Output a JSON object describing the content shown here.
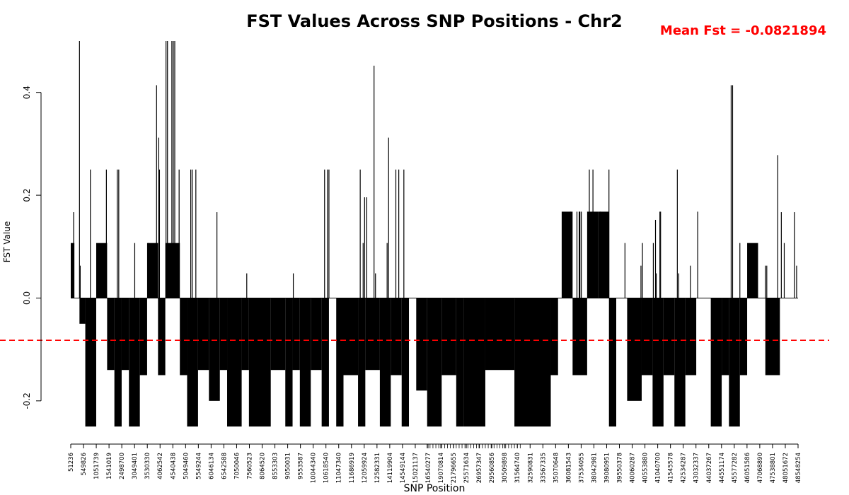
{
  "chart_data": {
    "type": "bar",
    "title": "FST Values Across SNP Positions - Chr2",
    "annotation": "Mean Fst = -0.0821894",
    "xlabel": "SNP Position",
    "ylabel": "FST Value",
    "ylim": [
      -0.28,
      0.5
    ],
    "yticks": [
      -0.2,
      0.0,
      0.2,
      0.4
    ],
    "ytick_labels": [
      "-0.2",
      "0.0",
      "0.2",
      "0.4"
    ],
    "mean_line": -0.0821894,
    "mean_line_color": "#ff0000",
    "bar_color": "#000000",
    "x_tick_labels": [
      "51236",
      "549826",
      "1051739",
      "1541019",
      "2498700",
      "3049401",
      "3530330",
      "4062542",
      "4540438",
      "5049460",
      "5549244",
      "6046134",
      "6542588",
      "7050046",
      "7560523",
      "8064520",
      "8553303",
      "9050031",
      "9553587",
      "10044340",
      "10618540",
      "11047340",
      "11686919",
      "12059924",
      "12582331",
      "14119904",
      "14549144",
      "15021137",
      "16540277",
      "19070814",
      "21796655",
      "25571634",
      "26957347",
      "29560856",
      "30509898",
      "31564740",
      "32590831",
      "33567335",
      "35070648",
      "36081543",
      "37534055",
      "38042981",
      "39080951",
      "39550378",
      "40060287",
      "40553880",
      "41040700",
      "41545578",
      "42534287",
      "43032337",
      "44037267",
      "44551174",
      "45577282",
      "46051586",
      "47068890",
      "47538801",
      "48051672",
      "48548254"
    ],
    "segments": [
      {
        "from": 0.0,
        "to": 0.005,
        "level": 0.107
      },
      {
        "from": 0.005,
        "to": 0.012,
        "level": 0.0
      },
      {
        "from": 0.012,
        "to": 0.02,
        "level": -0.05
      },
      {
        "from": 0.02,
        "to": 0.035,
        "level": -0.25
      },
      {
        "from": 0.035,
        "to": 0.05,
        "level": 0.107
      },
      {
        "from": 0.05,
        "to": 0.06,
        "level": -0.14
      },
      {
        "from": 0.06,
        "to": 0.07,
        "level": -0.25
      },
      {
        "from": 0.07,
        "to": 0.08,
        "level": -0.14
      },
      {
        "from": 0.08,
        "to": 0.095,
        "level": -0.25
      },
      {
        "from": 0.095,
        "to": 0.105,
        "level": -0.15
      },
      {
        "from": 0.105,
        "to": 0.12,
        "level": 0.107
      },
      {
        "from": 0.12,
        "to": 0.13,
        "level": -0.15
      },
      {
        "from": 0.13,
        "to": 0.15,
        "level": 0.107
      },
      {
        "from": 0.15,
        "to": 0.16,
        "level": -0.15
      },
      {
        "from": 0.16,
        "to": 0.175,
        "level": -0.25
      },
      {
        "from": 0.175,
        "to": 0.19,
        "level": -0.14
      },
      {
        "from": 0.19,
        "to": 0.205,
        "level": -0.2
      },
      {
        "from": 0.205,
        "to": 0.215,
        "level": -0.14
      },
      {
        "from": 0.215,
        "to": 0.235,
        "level": -0.25
      },
      {
        "from": 0.235,
        "to": 0.245,
        "level": -0.14
      },
      {
        "from": 0.245,
        "to": 0.275,
        "level": -0.25
      },
      {
        "from": 0.275,
        "to": 0.295,
        "level": -0.14
      },
      {
        "from": 0.295,
        "to": 0.305,
        "level": -0.25
      },
      {
        "from": 0.305,
        "to": 0.315,
        "level": -0.14
      },
      {
        "from": 0.315,
        "to": 0.33,
        "level": -0.25
      },
      {
        "from": 0.33,
        "to": 0.345,
        "level": -0.14
      },
      {
        "from": 0.345,
        "to": 0.355,
        "level": -0.25
      },
      {
        "from": 0.355,
        "to": 0.365,
        "level": 0.0
      },
      {
        "from": 0.365,
        "to": 0.375,
        "level": -0.25
      },
      {
        "from": 0.375,
        "to": 0.395,
        "level": -0.15
      },
      {
        "from": 0.395,
        "to": 0.405,
        "level": -0.25
      },
      {
        "from": 0.405,
        "to": 0.425,
        "level": -0.14
      },
      {
        "from": 0.425,
        "to": 0.44,
        "level": -0.25
      },
      {
        "from": 0.44,
        "to": 0.455,
        "level": -0.15
      },
      {
        "from": 0.455,
        "to": 0.465,
        "level": -0.25
      },
      {
        "from": 0.465,
        "to": 0.475,
        "level": 0.0
      },
      {
        "from": 0.475,
        "to": 0.49,
        "level": -0.18
      },
      {
        "from": 0.49,
        "to": 0.51,
        "level": -0.25
      },
      {
        "from": 0.51,
        "to": 0.53,
        "level": -0.15
      },
      {
        "from": 0.53,
        "to": 0.54,
        "level": -0.25
      },
      {
        "from": 0.54,
        "to": 0.57,
        "level": -0.25
      },
      {
        "from": 0.57,
        "to": 0.61,
        "level": -0.14
      },
      {
        "from": 0.61,
        "to": 0.66,
        "level": -0.25
      },
      {
        "from": 0.66,
        "to": 0.67,
        "level": -0.15
      },
      {
        "from": 0.67,
        "to": 0.675,
        "level": 0.0
      },
      {
        "from": 0.675,
        "to": 0.69,
        "level": 0.168
      },
      {
        "from": 0.69,
        "to": 0.71,
        "level": -0.15
      },
      {
        "from": 0.71,
        "to": 0.725,
        "level": 0.168
      },
      {
        "from": 0.725,
        "to": 0.74,
        "level": 0.168
      },
      {
        "from": 0.74,
        "to": 0.75,
        "level": -0.25
      },
      {
        "from": 0.75,
        "to": 0.765,
        "level": 0.0
      },
      {
        "from": 0.765,
        "to": 0.785,
        "level": -0.2
      },
      {
        "from": 0.785,
        "to": 0.8,
        "level": -0.15
      },
      {
        "from": 0.8,
        "to": 0.815,
        "level": -0.25
      },
      {
        "from": 0.815,
        "to": 0.83,
        "level": -0.15
      },
      {
        "from": 0.83,
        "to": 0.845,
        "level": -0.25
      },
      {
        "from": 0.845,
        "to": 0.86,
        "level": -0.15
      },
      {
        "from": 0.86,
        "to": 0.865,
        "level": 0.0
      },
      {
        "from": 0.865,
        "to": 0.88,
        "level": 0.0
      },
      {
        "from": 0.88,
        "to": 0.895,
        "level": -0.25
      },
      {
        "from": 0.895,
        "to": 0.905,
        "level": -0.15
      },
      {
        "from": 0.905,
        "to": 0.92,
        "level": -0.25
      },
      {
        "from": 0.92,
        "to": 0.93,
        "level": -0.15
      },
      {
        "from": 0.93,
        "to": 0.945,
        "level": 0.107
      },
      {
        "from": 0.945,
        "to": 0.955,
        "level": 0.0
      },
      {
        "from": 0.955,
        "to": 0.975,
        "level": -0.15
      },
      {
        "from": 0.975,
        "to": 1.0,
        "level": 0.0
      }
    ],
    "peaks": [
      {
        "x": 0.004,
        "value": 0.167
      },
      {
        "x": 0.012,
        "value": 0.5
      },
      {
        "x": 0.013,
        "value": 0.063
      },
      {
        "x": 0.027,
        "value": 0.25
      },
      {
        "x": 0.049,
        "value": 0.25
      },
      {
        "x": 0.064,
        "value": 0.25
      },
      {
        "x": 0.066,
        "value": 0.25
      },
      {
        "x": 0.088,
        "value": 0.107
      },
      {
        "x": 0.107,
        "value": 0.107
      },
      {
        "x": 0.117,
        "value": 0.107
      },
      {
        "x": 0.118,
        "value": 0.414
      },
      {
        "x": 0.121,
        "value": 0.312
      },
      {
        "x": 0.122,
        "value": 0.25
      },
      {
        "x": 0.131,
        "value": 0.5
      },
      {
        "x": 0.133,
        "value": 0.5
      },
      {
        "x": 0.139,
        "value": 0.5
      },
      {
        "x": 0.141,
        "value": 0.5
      },
      {
        "x": 0.143,
        "value": 0.5
      },
      {
        "x": 0.146,
        "value": 0.063
      },
      {
        "x": 0.149,
        "value": 0.25
      },
      {
        "x": 0.165,
        "value": 0.25
      },
      {
        "x": 0.167,
        "value": 0.25
      },
      {
        "x": 0.172,
        "value": 0.25
      },
      {
        "x": 0.201,
        "value": 0.167
      },
      {
        "x": 0.242,
        "value": 0.048
      },
      {
        "x": 0.306,
        "value": 0.048
      },
      {
        "x": 0.349,
        "value": 0.25
      },
      {
        "x": 0.353,
        "value": 0.25
      },
      {
        "x": 0.355,
        "value": 0.25
      },
      {
        "x": 0.398,
        "value": 0.25
      },
      {
        "x": 0.402,
        "value": 0.107
      },
      {
        "x": 0.404,
        "value": 0.196
      },
      {
        "x": 0.407,
        "value": 0.196
      },
      {
        "x": 0.417,
        "value": 0.452
      },
      {
        "x": 0.419,
        "value": 0.048
      },
      {
        "x": 0.435,
        "value": 0.107
      },
      {
        "x": 0.437,
        "value": 0.312
      },
      {
        "x": 0.447,
        "value": 0.25
      },
      {
        "x": 0.451,
        "value": 0.25
      },
      {
        "x": 0.458,
        "value": 0.25
      },
      {
        "x": 0.687,
        "value": 0.168
      },
      {
        "x": 0.696,
        "value": 0.168
      },
      {
        "x": 0.699,
        "value": 0.168
      },
      {
        "x": 0.7,
        "value": 0.168
      },
      {
        "x": 0.7,
        "value": 0.168
      },
      {
        "x": 0.702,
        "value": 0.168
      },
      {
        "x": 0.713,
        "value": 0.25
      },
      {
        "x": 0.718,
        "value": 0.25
      },
      {
        "x": 0.724,
        "value": 0.107
      },
      {
        "x": 0.728,
        "value": 0.168
      },
      {
        "x": 0.74,
        "value": 0.25
      },
      {
        "x": 0.762,
        "value": 0.107
      },
      {
        "x": 0.784,
        "value": 0.063
      },
      {
        "x": 0.786,
        "value": 0.107
      },
      {
        "x": 0.801,
        "value": 0.107
      },
      {
        "x": 0.804,
        "value": 0.152
      },
      {
        "x": 0.805,
        "value": 0.048
      },
      {
        "x": 0.81,
        "value": 0.168
      },
      {
        "x": 0.811,
        "value": 0.168
      },
      {
        "x": 0.834,
        "value": 0.25
      },
      {
        "x": 0.836,
        "value": 0.048
      },
      {
        "x": 0.852,
        "value": 0.063
      },
      {
        "x": 0.862,
        "value": 0.168
      },
      {
        "x": 0.908,
        "value": 0.414
      },
      {
        "x": 0.91,
        "value": 0.414
      },
      {
        "x": 0.92,
        "value": 0.107
      },
      {
        "x": 0.938,
        "value": 0.063
      },
      {
        "x": 0.955,
        "value": 0.063
      },
      {
        "x": 0.957,
        "value": 0.063
      },
      {
        "x": 0.972,
        "value": 0.278
      },
      {
        "x": 0.977,
        "value": 0.167
      },
      {
        "x": 0.981,
        "value": 0.107
      },
      {
        "x": 0.995,
        "value": 0.167
      },
      {
        "x": 0.998,
        "value": 0.063
      }
    ]
  }
}
